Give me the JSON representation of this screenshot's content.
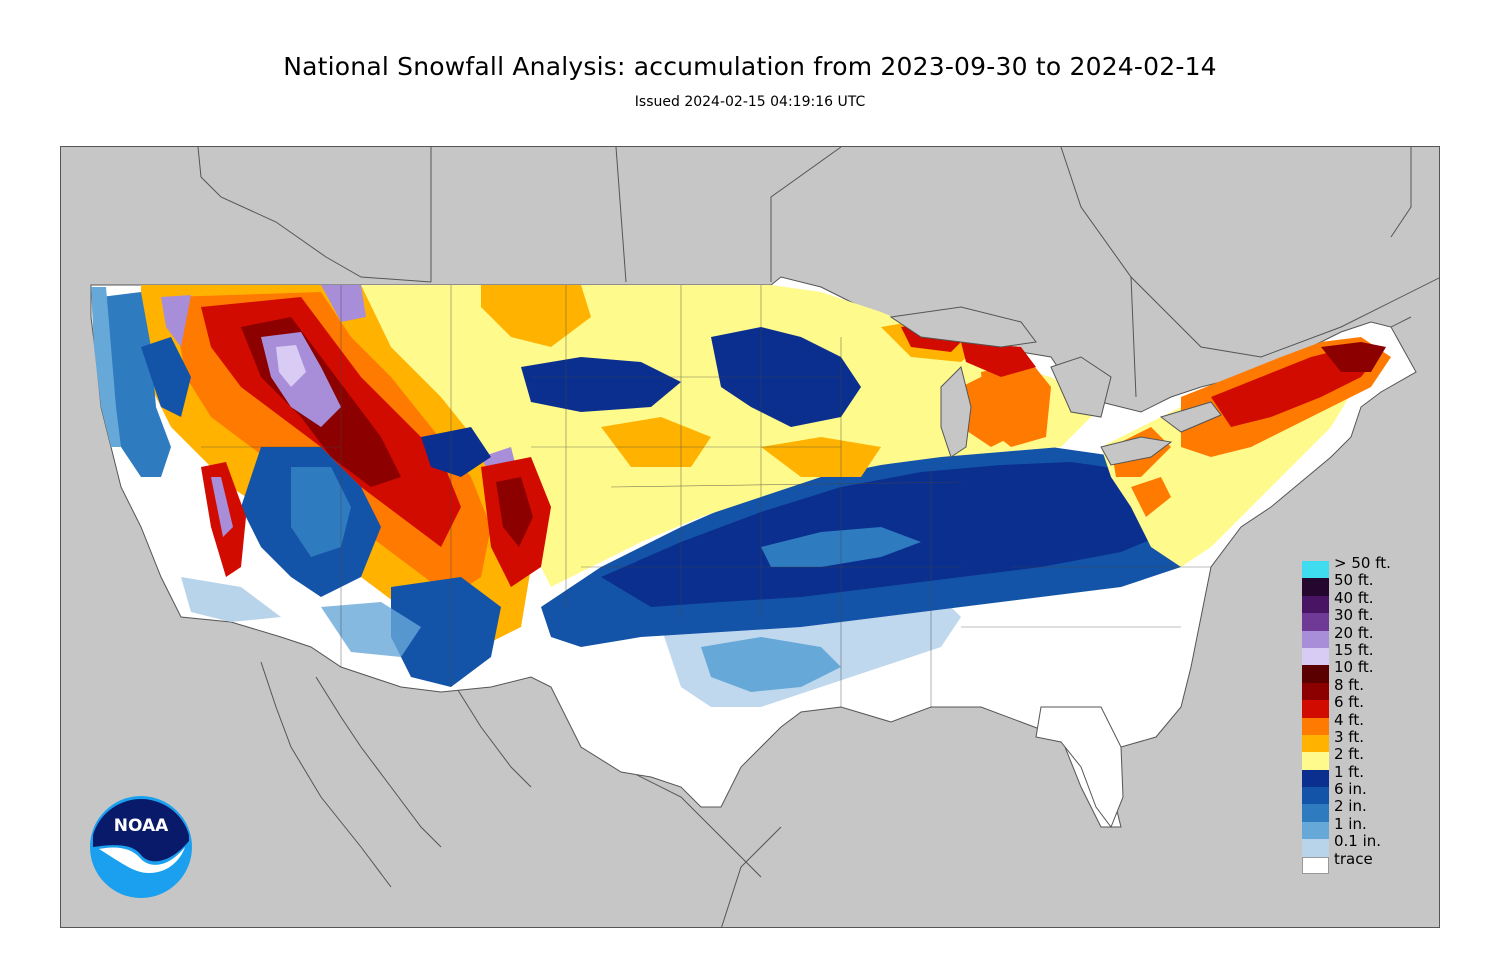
{
  "header": {
    "title": "National Snowfall Analysis: accumulation from 2023-09-30 to 2024-02-14",
    "subtitle": "Issued 2024-02-15 04:19:16 UTC"
  },
  "map": {
    "background_color": "#c6c6c6",
    "land_color": "#ffffff",
    "border_color": "#444444"
  },
  "legend": {
    "items": [
      {
        "label": "> 50 ft.",
        "color": "#3fdcf0"
      },
      {
        "label": "50 ft.",
        "color": "#24062e"
      },
      {
        "label": "40 ft.",
        "color": "#4a1465"
      },
      {
        "label": "30 ft.",
        "color": "#6f3a96"
      },
      {
        "label": "20 ft.",
        "color": "#a88ed8"
      },
      {
        "label": "15 ft.",
        "color": "#d9ccf4"
      },
      {
        "label": "10 ft.",
        "color": "#5a0000"
      },
      {
        "label": "8 ft.",
        "color": "#8c0000"
      },
      {
        "label": "6 ft.",
        "color": "#d20b00"
      },
      {
        "label": "4 ft.",
        "color": "#ff7a00"
      },
      {
        "label": "3 ft.",
        "color": "#ffb300"
      },
      {
        "label": "2 ft.",
        "color": "#fffa8c"
      },
      {
        "label": "1 ft.",
        "color": "#0a2f8f"
      },
      {
        "label": "6 in.",
        "color": "#1454a8"
      },
      {
        "label": "2 in.",
        "color": "#2f7bc0"
      },
      {
        "label": "1 in.",
        "color": "#66a8d8"
      },
      {
        "label": "0.1 in.",
        "color": "#b8d4eb"
      },
      {
        "label": "trace",
        "color": "#ffffff"
      }
    ]
  },
  "logo": {
    "text": "NOAA",
    "color_dark": "#0a1a6b",
    "color_light": "#1aa0ef"
  }
}
